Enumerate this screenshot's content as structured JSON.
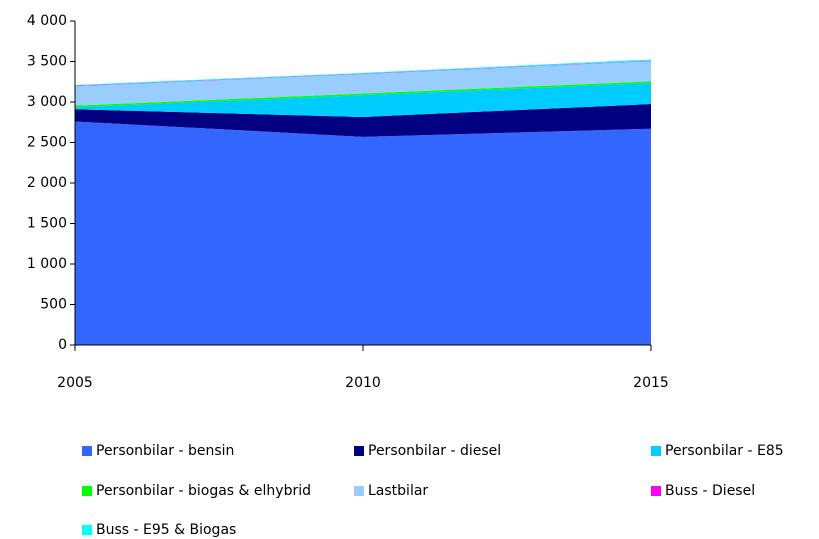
{
  "chart_data": {
    "type": "stacked_area",
    "x": [
      2005,
      2010,
      2015
    ],
    "xlim": [
      2005,
      2015
    ],
    "xticks": [
      2005,
      2010,
      2015
    ],
    "ylim": [
      0,
      4000
    ],
    "yticks": [
      0,
      500,
      {
        "value": 1000,
        "label": "1 000"
      },
      {
        "value": 1500,
        "label": "1 500"
      },
      {
        "value": 2000,
        "label": "2 000"
      },
      {
        "value": 2500,
        "label": "2 500"
      },
      {
        "value": 3000,
        "label": "3 000"
      },
      {
        "value": 3500,
        "label": "3 500"
      },
      {
        "value": 4000,
        "label": "4 000"
      }
    ],
    "series": [
      {
        "name": "Personbilar - bensin",
        "color": "#3366ff",
        "values": [
          2760,
          2570,
          2670
        ]
      },
      {
        "name": "Personbilar - diesel",
        "color": "#000080",
        "values": [
          150,
          245,
          305
        ]
      },
      {
        "name": "Personbilar - E85",
        "color": "#00ccff",
        "values": [
          25,
          270,
          260
        ]
      },
      {
        "name": "Personbilar - biogas & elhybrid",
        "color": "#00ff00",
        "values": [
          20,
          20,
          20
        ]
      },
      {
        "name": "Lastbilar",
        "color": "#99ccff",
        "values": [
          240,
          240,
          250
        ]
      },
      {
        "name": "Buss - Diesel",
        "color": "#ff00ff",
        "values": [
          5,
          5,
          5
        ]
      },
      {
        "name": "Buss - E95 & Biogas",
        "color": "#00ffff",
        "values": [
          10,
          10,
          15
        ]
      }
    ]
  }
}
